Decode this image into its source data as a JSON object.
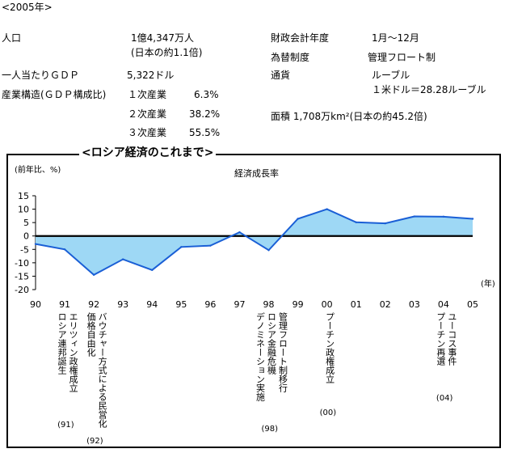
{
  "header": {
    "year_note": "<2005年>",
    "population_label": "人口",
    "population_value": "1億4,347万人",
    "population_compare": "(日本の約1.1倍)",
    "fiscal_label": "財政会計年度",
    "fiscal_value": "1月～12月",
    "fx_label": "為替制度",
    "fx_value": "管理フロート制",
    "gdp_pc_label": "一人当たりＧＤＰ",
    "gdp_pc_value": "5,322ドル",
    "currency_label": "通貨",
    "currency_value": "ルーブル",
    "currency_rate": "１米ドル＝28.28ルーブル",
    "structure_label": "産業構造(ＧＤＰ構成比)",
    "sectors": [
      {
        "name": "１次産業",
        "value": "6.3%"
      },
      {
        "name": "２次産業",
        "value": "38.2%"
      },
      {
        "name": "３次産業",
        "value": "55.5%"
      }
    ],
    "area_text": "面積 1,708万km²(日本の約45.2倍)"
  },
  "section_title": "<ロシア経済のこれまで>",
  "chart_data": {
    "type": "area",
    "title": "経済成長率",
    "ylabel": "(前年比、%)",
    "xlabel": "(年)",
    "ylim": [
      -20,
      15
    ],
    "yticks": [
      15,
      10,
      5,
      0,
      -5,
      -10,
      -15,
      -20
    ],
    "categories": [
      "90",
      "91",
      "92",
      "93",
      "94",
      "95",
      "96",
      "97",
      "98",
      "99",
      "00",
      "01",
      "02",
      "03",
      "04",
      "05"
    ],
    "series": [
      {
        "values": [
          -3.0,
          -5.0,
          -14.5,
          -8.7,
          -12.7,
          -4.1,
          -3.6,
          1.4,
          -5.3,
          6.4,
          10.0,
          5.1,
          4.7,
          7.3,
          7.2,
          6.4
        ]
      }
    ],
    "fill_color": "#9ed8f5",
    "line_color": "#1a5fd6",
    "grid": false
  },
  "events": [
    {
      "lines": [
        "エリツィン政権成立",
        "ロシア連邦誕生"
      ],
      "paren": "(91)"
    },
    {
      "lines": [
        "バウチャー方式による民営化",
        "価格自由化"
      ],
      "paren": "(92)"
    },
    {
      "lines": [
        "管理フロート制移行",
        "ロシア金融危機",
        "デノミネーション実施"
      ],
      "paren": "(98)"
    },
    {
      "lines": [
        "プーチン政権成立"
      ],
      "paren": "(00)"
    },
    {
      "lines": [
        "ユーコス事件",
        "プーチン再選"
      ],
      "paren": "(04)"
    }
  ]
}
